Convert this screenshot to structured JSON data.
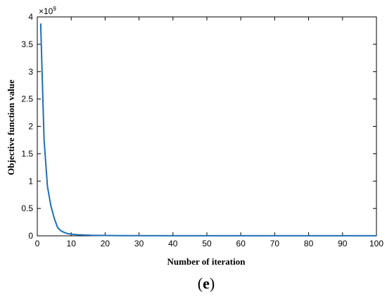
{
  "chart_data": {
    "type": "line",
    "title": "",
    "xlabel": "Number of iteration",
    "ylabel": "Objective function value",
    "y_multiplier": "×10",
    "y_multiplier_exp": "9",
    "xlim": [
      0,
      100
    ],
    "ylim": [
      0,
      4
    ],
    "x_ticks": [
      0,
      10,
      20,
      30,
      40,
      50,
      60,
      70,
      80,
      90,
      100
    ],
    "y_ticks": [
      0,
      0.5,
      1,
      1.5,
      2,
      2.5,
      3,
      3.5,
      4
    ],
    "grid": false,
    "series": [
      {
        "color": "#1f6fb5",
        "x": [
          1,
          2,
          3,
          4,
          5,
          6,
          7,
          8,
          9,
          10,
          12,
          14,
          16,
          18,
          20,
          25,
          30,
          40,
          50,
          60,
          70,
          80,
          90,
          100
        ],
        "y": [
          3.88,
          1.75,
          0.9,
          0.55,
          0.32,
          0.15,
          0.09,
          0.06,
          0.04,
          0.03,
          0.02,
          0.015,
          0.01,
          0.008,
          0.006,
          0.004,
          0.003,
          0.002,
          0.002,
          0.002,
          0.002,
          0.002,
          0.002,
          0.002
        ]
      }
    ]
  },
  "caption": {
    "open": "(",
    "letter": "e",
    "close": ")"
  }
}
